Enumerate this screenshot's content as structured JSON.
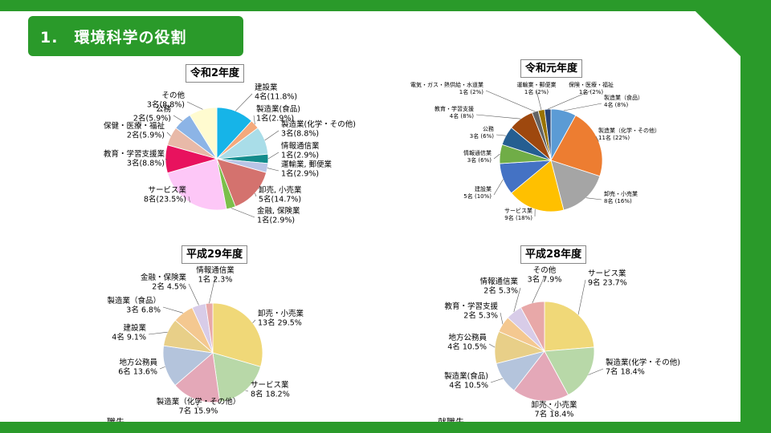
{
  "slide": {
    "title": "1.　環境科学の役割",
    "bottom_left_fragment": "職先",
    "bottom_right_fragment": "就職先"
  },
  "colors": {
    "band": "#2a9a2a",
    "background": "#ffffff"
  },
  "chart_data": [
    {
      "type": "pie",
      "title": "令和2年度",
      "slices": [
        {
          "name": "建設業",
          "value": "4名(11.8%)",
          "pct": 11.8,
          "color": "#16b4e8"
        },
        {
          "name": "製造業(食品)",
          "value": "1名(2.9%)",
          "pct": 2.9,
          "color": "#f4a97c"
        },
        {
          "name": "製造業(化学・その他)",
          "value": "3名(8.8%)",
          "pct": 8.8,
          "color": "#a9dde8"
        },
        {
          "name": "情報通信業",
          "value": "1名(2.9%)",
          "pct": 2.9,
          "color": "#128c8c"
        },
        {
          "name": "運輸業, 郵便業",
          "value": "1名(2.9%)",
          "pct": 2.9,
          "color": "#b8c4e6"
        },
        {
          "name": "卸売, 小売業",
          "value": "5名(14.7%)",
          "pct": 14.7,
          "color": "#d4726e"
        },
        {
          "name": "金融, 保険業",
          "value": "1名(2.9%)",
          "pct": 2.9,
          "color": "#7bbf4a"
        },
        {
          "name": "サービス業",
          "value": "8名(23.5%)",
          "pct": 23.5,
          "color": "#fdc7f7"
        },
        {
          "name": "教育・学習支援業",
          "value": "3名(8.8%)",
          "pct": 8.8,
          "color": "#e8125e"
        },
        {
          "name": "保健・医療・福祉",
          "value": "2名(5.9%)",
          "pct": 5.9,
          "color": "#e8b9a8"
        },
        {
          "name": "公務",
          "value": "2名(5.9%)",
          "pct": 5.9,
          "color": "#8cb4e6"
        },
        {
          "name": "その他",
          "value": "3名(8.8%)",
          "pct": 8.8,
          "color": "#fffbd0"
        }
      ]
    },
    {
      "type": "pie",
      "title": "令和元年度",
      "slices": [
        {
          "name": "製造業（食品）",
          "value": "4名 (8%)",
          "pct": 8,
          "color": "#5b9bd5"
        },
        {
          "name": "製造業（化学・その他）",
          "value": "11名 (22%)",
          "pct": 22,
          "color": "#ed7d31"
        },
        {
          "name": "卸売・小売業",
          "value": "8名 (16%)",
          "pct": 16,
          "color": "#a5a5a5"
        },
        {
          "name": "サービス業",
          "value": "9名 (18%)",
          "pct": 18,
          "color": "#ffc000"
        },
        {
          "name": "建設業",
          "value": "5名 (10%)",
          "pct": 10,
          "color": "#4472c4"
        },
        {
          "name": "情報通信業",
          "value": "3名 (6%)",
          "pct": 6,
          "color": "#70ad47"
        },
        {
          "name": "公務",
          "value": "3名 (6%)",
          "pct": 6,
          "color": "#255e91"
        },
        {
          "name": "教育・学習支援",
          "value": "4名 (8%)",
          "pct": 8,
          "color": "#9e480e"
        },
        {
          "name": "電気・ガス・熱供給・水道業",
          "value": "1名 (2%)",
          "pct": 2,
          "color": "#636363"
        },
        {
          "name": "運輸業・郵便業",
          "value": "1名 (2%)",
          "pct": 2,
          "color": "#997300"
        },
        {
          "name": "保険・医療・福祉",
          "value": "1名 (2%)",
          "pct": 2,
          "color": "#264478"
        }
      ]
    },
    {
      "type": "pie",
      "title": "平成29年度",
      "slices": [
        {
          "name": "卸売・小売業",
          "value": "13名 29.5%",
          "pct": 29.5,
          "color": "#f0d878"
        },
        {
          "name": "サービス業",
          "value": "8名 18.2%",
          "pct": 18.2,
          "color": "#b8d8a8"
        },
        {
          "name": "製造業（化学・その他）",
          "value": "7名 15.9%",
          "pct": 15.9,
          "color": "#e4a8b8"
        },
        {
          "name": "地方公務員",
          "value": "6名 13.6%",
          "pct": 13.6,
          "color": "#b4c4dc"
        },
        {
          "name": "建設業",
          "value": "4名 9.1%",
          "pct": 9.1,
          "color": "#e8cf88"
        },
        {
          "name": "製造業（食品）",
          "value": "3名 6.8%",
          "pct": 6.8,
          "color": "#f4c890"
        },
        {
          "name": "金融・保険業",
          "value": "2名 4.5%",
          "pct": 4.5,
          "color": "#d8cce8"
        },
        {
          "name": "情報通信業",
          "value": "1名 2.3%",
          "pct": 2.3,
          "color": "#e8a8a8"
        }
      ]
    },
    {
      "type": "pie",
      "title": "平成28年度",
      "slices": [
        {
          "name": "サービス業",
          "value": "9名 23.7%",
          "pct": 23.7,
          "color": "#f0d878"
        },
        {
          "name": "製造業(化学・その他)",
          "value": "7名 18.4%",
          "pct": 18.4,
          "color": "#b8d8a8"
        },
        {
          "name": "卸売・小売業",
          "value": "7名 18.4%",
          "pct": 18.4,
          "color": "#e4a8b8"
        },
        {
          "name": "製造業(食品)",
          "value": "4名 10.5%",
          "pct": 10.5,
          "color": "#b4c4dc"
        },
        {
          "name": "地方公務員",
          "value": "4名 10.5%",
          "pct": 10.5,
          "color": "#e8cf88"
        },
        {
          "name": "教育・学習支援",
          "value": "2名 5.3%",
          "pct": 5.3,
          "color": "#f4c890"
        },
        {
          "name": "情報通信業",
          "value": "2名 5.3%",
          "pct": 5.3,
          "color": "#d8cce8"
        },
        {
          "name": "その他",
          "value": "3名 7.9%",
          "pct": 7.9,
          "color": "#e8a8a8"
        }
      ]
    }
  ]
}
